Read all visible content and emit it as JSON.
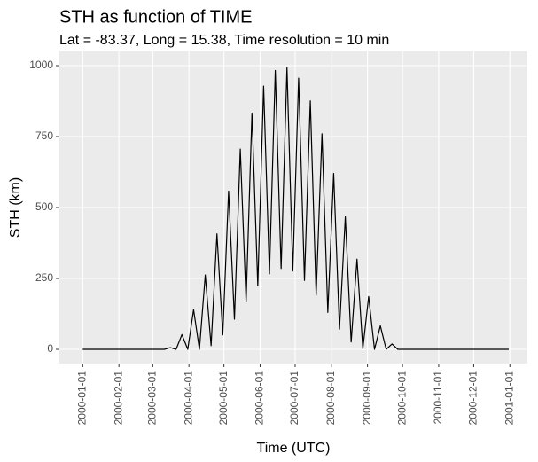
{
  "chart_data": {
    "type": "line",
    "title": "STH as function of TIME",
    "subtitle": "Lat = -83.37, Long = 15.38, Time resolution = 10 min",
    "x_label": "Time (UTC)",
    "y_label": "STH (km)",
    "x": [
      "2000-01-01",
      "2000-03-01",
      "2000-03-11",
      "2000-03-16",
      "2000-03-21",
      "2000-03-26",
      "2000-03-31",
      "2000-04-05",
      "2000-04-10",
      "2000-04-15",
      "2000-04-20",
      "2000-04-25",
      "2000-04-30",
      "2000-05-05",
      "2000-05-10",
      "2000-05-15",
      "2000-05-20",
      "2000-05-25",
      "2000-05-30",
      "2000-06-04",
      "2000-06-09",
      "2000-06-14",
      "2000-06-19",
      "2000-06-24",
      "2000-06-29",
      "2000-07-04",
      "2000-07-09",
      "2000-07-14",
      "2000-07-19",
      "2000-07-24",
      "2000-07-29",
      "2000-08-03",
      "2000-08-08",
      "2000-08-13",
      "2000-08-18",
      "2000-08-23",
      "2000-08-28",
      "2000-09-02",
      "2000-09-07",
      "2000-09-12",
      "2000-09-17",
      "2000-09-22",
      "2000-09-27",
      "2000-10-01",
      "2000-12-31"
    ],
    "series": [
      {
        "name": "STH",
        "color": "#000000",
        "values": [
          0,
          0,
          0,
          6,
          0,
          52,
          0,
          140,
          0,
          262,
          13,
          407,
          51,
          558,
          106,
          706,
          167,
          833,
          224,
          928,
          266,
          983,
          285,
          993,
          276,
          956,
          243,
          876,
          191,
          760,
          130,
          620,
          71,
          467,
          26,
          318,
          2,
          186,
          0,
          83,
          0,
          19,
          0,
          0,
          0
        ]
      }
    ],
    "xlim": [
      "1999-12-12",
      "2001-01-16"
    ],
    "xticks": [
      "2000-01-01",
      "2000-02-01",
      "2000-03-01",
      "2000-04-01",
      "2000-05-01",
      "2000-06-01",
      "2000-07-01",
      "2000-08-01",
      "2000-09-01",
      "2000-10-01",
      "2000-11-01",
      "2000-12-01",
      "2001-01-01"
    ],
    "ylim": [
      -50,
      1050
    ],
    "yticks": [
      0,
      250,
      500,
      750,
      1000
    ],
    "grid": true
  }
}
